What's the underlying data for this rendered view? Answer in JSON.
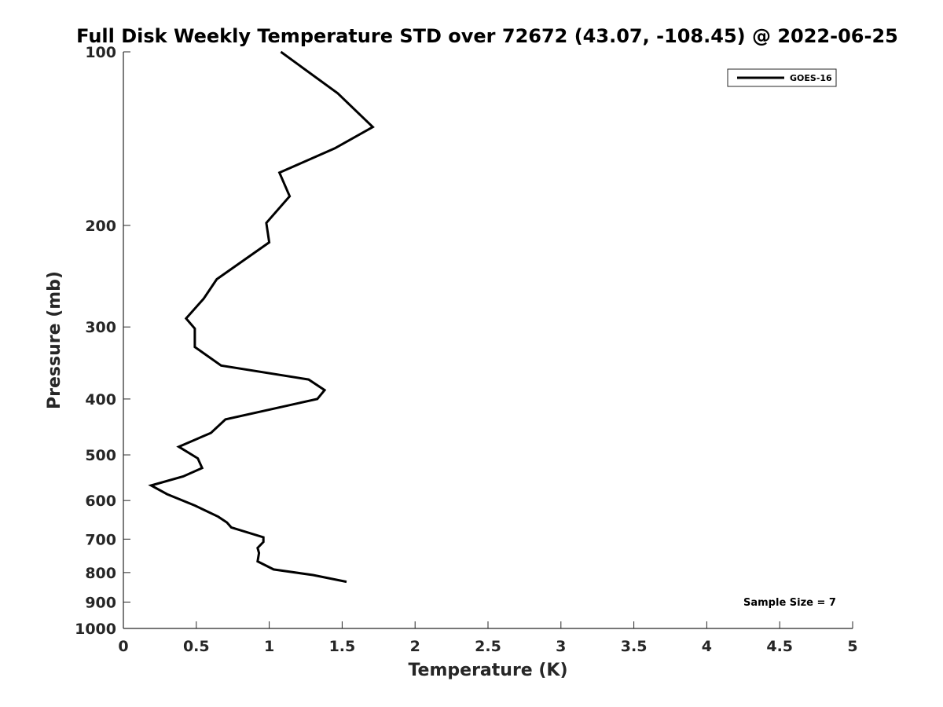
{
  "chart_data": {
    "type": "line",
    "title": "Full Disk Weekly Temperature STD over 72672 (43.07, -108.45) @ 2022-06-25",
    "xlabel": "Temperature (K)",
    "ylabel": "Pressure (mb)",
    "xlim": [
      0,
      5
    ],
    "ylim": [
      1000,
      100
    ],
    "yscale": "log",
    "y_reversed": true,
    "grid": false,
    "x_ticks": [
      0,
      0.5,
      1,
      1.5,
      2,
      2.5,
      3,
      3.5,
      4,
      4.5,
      5
    ],
    "x_tick_labels": [
      "0",
      "0.5",
      "1",
      "1.5",
      "2",
      "2.5",
      "3",
      "3.5",
      "4",
      "4.5",
      "5"
    ],
    "y_ticks": [
      100,
      200,
      300,
      400,
      500,
      600,
      700,
      800,
      900,
      1000
    ],
    "y_tick_labels": [
      "100",
      "200",
      "300",
      "400",
      "500",
      "600",
      "700",
      "800",
      "900",
      "1000"
    ],
    "legend": {
      "position": "top-right",
      "entries": [
        "GOES-16"
      ]
    },
    "annotation": "Sample Size = 7",
    "line_color": "#000000",
    "series": [
      {
        "name": "GOES-16",
        "x": [
          1.08,
          1.47,
          1.71,
          1.45,
          1.07,
          1.14,
          0.98,
          1.0,
          0.64,
          0.55,
          0.43,
          0.49,
          0.49,
          0.67,
          1.27,
          1.38,
          1.33,
          0.7,
          0.6,
          0.38,
          0.51,
          0.54,
          0.41,
          0.19,
          0.3,
          0.49,
          0.65,
          0.71,
          0.74,
          0.96,
          0.96,
          0.92,
          0.93,
          0.92,
          1.03,
          1.3,
          1.53
        ],
        "y": [
          100,
          118,
          135,
          147,
          162,
          178,
          198,
          214,
          248,
          268,
          290,
          302,
          325,
          350,
          370,
          386,
          400,
          434,
          458,
          484,
          507,
          527,
          545,
          565,
          585,
          612,
          640,
          655,
          668,
          695,
          708,
          725,
          740,
          765,
          790,
          808,
          830
        ]
      }
    ]
  }
}
